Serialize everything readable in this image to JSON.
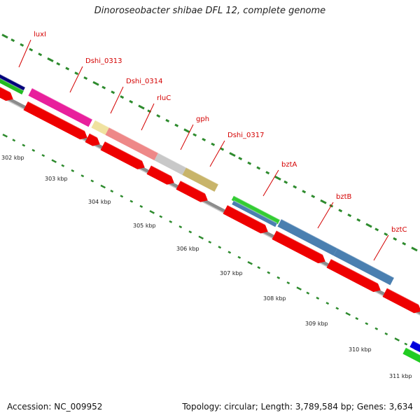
{
  "title": "Dinoroseobacter shibae DFL 12, complete genome",
  "footer": {
    "accession": "Accession: NC_009952",
    "summary": "Topology: circular; Length: 3,789,584 bp; Genes: 3,634"
  },
  "colors": {
    "backbone": "#8c8c8c",
    "tick": "#2e8b2e",
    "label": "#d40000",
    "cds": "#ee0000"
  },
  "gene_labels": [
    "luxI",
    "Dshi_0313",
    "Dshi_0314",
    "rluC",
    "gph",
    "Dshi_0317",
    "bztA",
    "bztB",
    "bztC"
  ],
  "kbp_labels": [
    "302 kbp",
    "303 kbp",
    "304 kbp",
    "305 kbp",
    "306 kbp",
    "307 kbp",
    "308 kbp",
    "309 kbp",
    "310 kbp",
    "311 kbp"
  ]
}
